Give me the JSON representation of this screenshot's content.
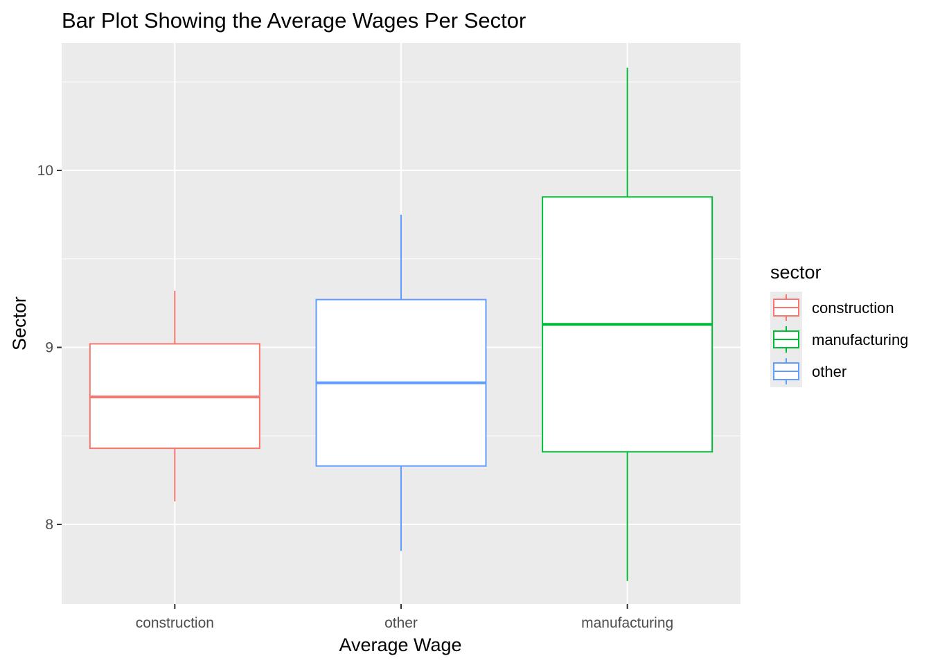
{
  "chart_data": {
    "type": "boxplot",
    "title": "Bar Plot Showing the Average Wages Per Sector",
    "xlabel": "Average Wage",
    "ylabel": "Sector",
    "categories": [
      "construction",
      "other",
      "manufacturing"
    ],
    "ylim": [
      7.55,
      10.72
    ],
    "yticks": [
      8,
      9,
      10
    ],
    "grid": true,
    "legend": {
      "title": "sector",
      "placement": "right",
      "entries": [
        "construction",
        "manufacturing",
        "other"
      ]
    },
    "series": [
      {
        "category": "construction",
        "color": "#F8766D",
        "whisker_low": 8.13,
        "q1": 8.43,
        "median": 8.72,
        "q3": 9.02,
        "whisker_high": 9.32
      },
      {
        "category": "other",
        "color": "#619CFF",
        "whisker_low": 7.85,
        "q1": 8.33,
        "median": 8.8,
        "q3": 9.27,
        "whisker_high": 9.75
      },
      {
        "category": "manufacturing",
        "color": "#00BA38",
        "whisker_low": 7.68,
        "q1": 8.41,
        "median": 9.13,
        "q3": 9.85,
        "whisker_high": 10.58
      }
    ],
    "legend_colors": {
      "construction": "#F8766D",
      "manufacturing": "#00BA38",
      "other": "#619CFF"
    },
    "panel_background": "#EBEBEB"
  }
}
